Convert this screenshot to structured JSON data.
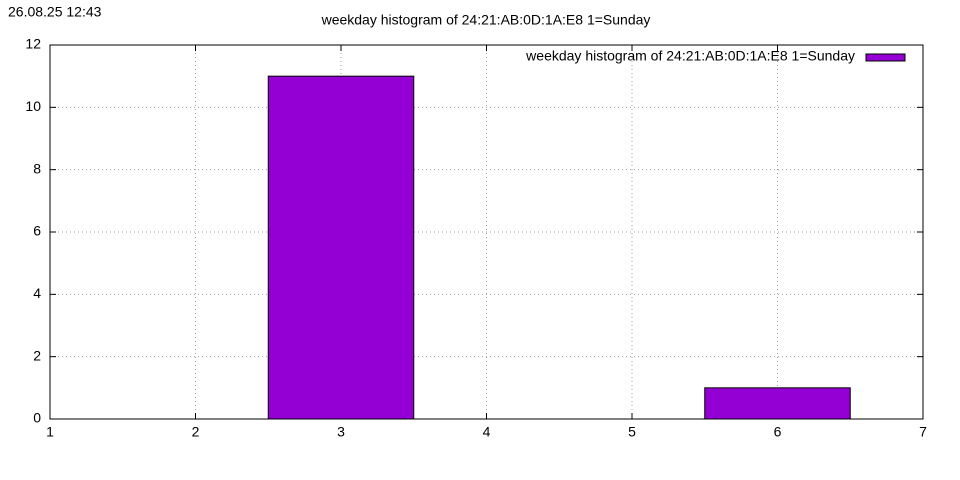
{
  "timestamp": "26.08.25 12:43",
  "chart_data": {
    "type": "bar",
    "title": "weekday histogram of 24:21:AB:0D:1A:E8 1=Sunday",
    "x": [
      3,
      6
    ],
    "series": [
      {
        "name": "weekday histogram of 24:21:AB:0D:1A:E8 1=Sunday",
        "color": "#9400d3",
        "values": [
          11,
          1
        ]
      }
    ],
    "xlim": [
      1,
      7
    ],
    "xticks": [
      1,
      2,
      3,
      4,
      5,
      6,
      7
    ],
    "ylim": [
      0,
      12
    ],
    "yticks": [
      0,
      2,
      4,
      6,
      8,
      10,
      12
    ],
    "grid": true,
    "legend": "top-right"
  }
}
